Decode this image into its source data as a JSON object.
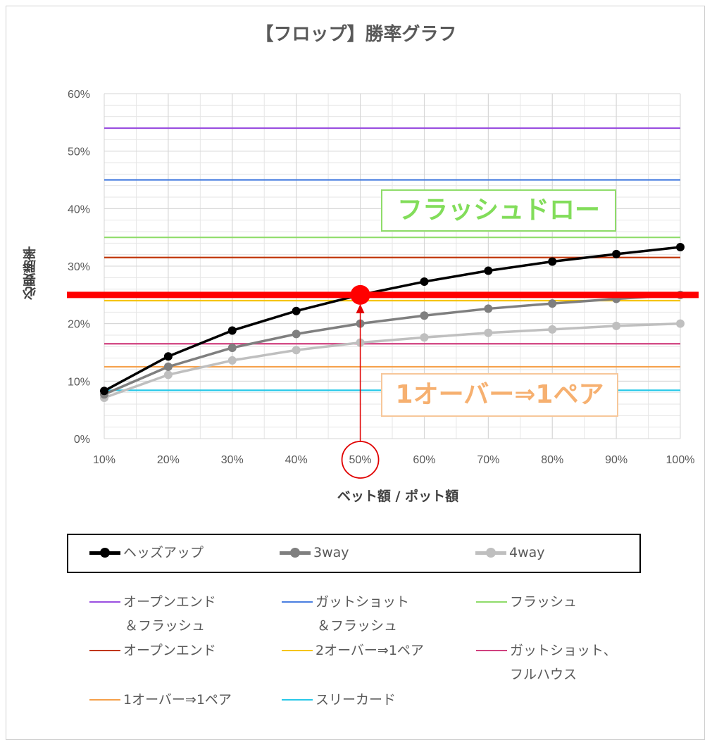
{
  "chart_data": {
    "type": "line",
    "title": "【フロップ】勝率グラフ",
    "xlabel": "ベット額 / ポット額",
    "ylabel": "必要勝率",
    "categories": [
      "10%",
      "20%",
      "30%",
      "40%",
      "50%",
      "60%",
      "70%",
      "80%",
      "90%",
      "100%"
    ],
    "x": [
      10,
      20,
      30,
      40,
      50,
      60,
      70,
      80,
      90,
      100
    ],
    "xlim": [
      10,
      100
    ],
    "ylim": [
      0,
      60
    ],
    "yticks": [
      "0%",
      "10%",
      "20%",
      "30%",
      "40%",
      "50%",
      "60%"
    ],
    "grid": true,
    "series": [
      {
        "name": "ヘッズアップ",
        "color": "#000000",
        "values": [
          8.3,
          14.3,
          18.8,
          22.2,
          25.0,
          27.3,
          29.2,
          30.8,
          32.1,
          33.3
        ]
      },
      {
        "name": "3way",
        "color": "#7f7f7f",
        "values": [
          7.7,
          12.5,
          15.8,
          18.2,
          20.0,
          21.4,
          22.6,
          23.5,
          24.3,
          25.0
        ]
      },
      {
        "name": "4way",
        "color": "#bfbfbf",
        "values": [
          7.1,
          11.1,
          13.6,
          15.4,
          16.7,
          17.6,
          18.4,
          19.0,
          19.6,
          20.0
        ]
      }
    ],
    "reference_lines": [
      {
        "name": "オープンエンド",
        "name2": "＆フラッシュ",
        "color": "#9a4fe0",
        "value": 54.0
      },
      {
        "name": "ガットショット",
        "name2": "＆フラッシュ",
        "color": "#4a7fe0",
        "value": 45.0
      },
      {
        "name": "フラッシュ",
        "name2": "",
        "color": "#8fdc6a",
        "value": 35.0
      },
      {
        "name": "オープンエンド",
        "name2": "",
        "color": "#c0360a",
        "value": 31.5
      },
      {
        "name": "2オーバー⇒1ペア",
        "name2": "",
        "color": "#f5c400",
        "value": 24.0
      },
      {
        "name": "ガットショット、",
        "name2": "フルハウス",
        "color": "#d0407f",
        "value": 16.5
      },
      {
        "name": "1オーバー⇒1ペア",
        "name2": "",
        "color": "#f5a04a",
        "value": 12.5
      },
      {
        "name": "スリーカード",
        "name2": "",
        "color": "#27c8e8",
        "value": 8.4
      }
    ],
    "annotations": {
      "flush_draw": "フラッシュドロー",
      "one_over_pair": "1オーバー⇒1ペア",
      "highlight_line": {
        "value": 25.0,
        "color": "#ff0000"
      },
      "highlight_point": {
        "x": 50,
        "y": 25.0,
        "color": "#ff0000"
      },
      "highlight_tick": "50%"
    },
    "legend_placement": "bottom"
  }
}
